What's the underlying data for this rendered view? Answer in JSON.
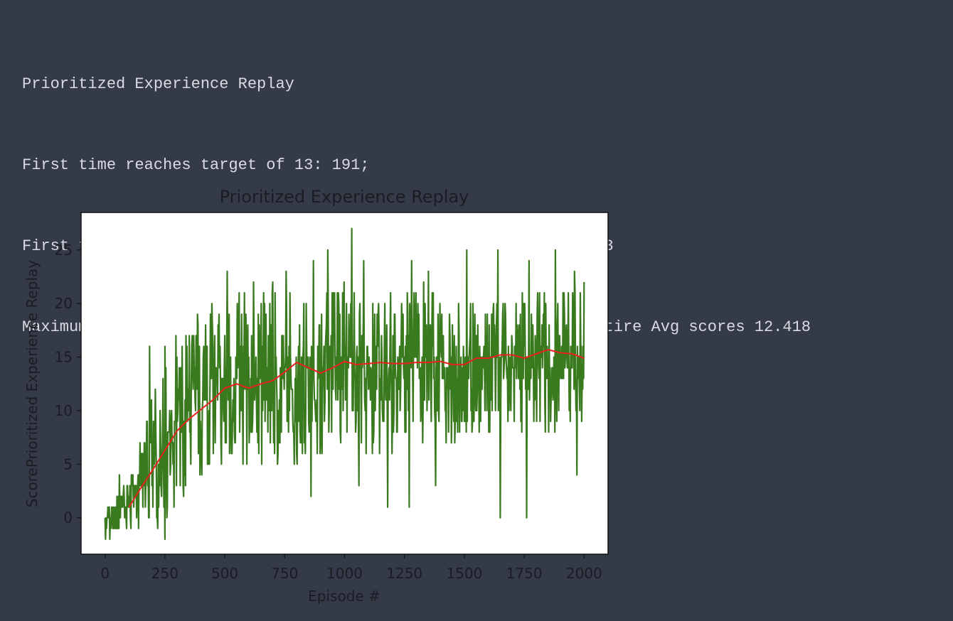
{
  "output": {
    "lines": [
      "Prioritized Experience Replay",
      "First time reaches target of 13: 191;",
      "First time reaches target of 13 with average of window 100: 713",
      "Maximum score: 27.0; Latest avg with window of 100: 14.84 ; Entire Avg scores 12.418"
    ]
  },
  "colors": {
    "background": "#343a48",
    "text": "#d8dbe2",
    "score_line": "#3a7a1e",
    "avg_line": "#e8211c"
  },
  "chart_data": {
    "type": "line",
    "title": "Prioritized Experience Replay",
    "xlabel": "Episode #",
    "ylabel": "ScorePrioritized Experience Replay",
    "xlim": [
      -100,
      2100
    ],
    "ylim": [
      -3.4,
      28.5
    ],
    "xticks": [
      0,
      250,
      500,
      750,
      1000,
      1250,
      1500,
      1750,
      2000
    ],
    "xtick_labels": [
      "0",
      "250",
      "500",
      "750",
      "1000",
      "1250",
      "1500",
      "1750",
      "2000"
    ],
    "yticks": [
      0,
      5,
      10,
      15,
      20,
      25
    ],
    "ytick_labels": [
      "0",
      "5",
      "10",
      "15",
      "20",
      "25"
    ],
    "grid": false,
    "legend": "none",
    "series": [
      {
        "role": "score",
        "color": "#3a7a1e",
        "envelope": {
          "x": [
            0,
            100,
            200,
            300,
            400,
            500,
            600,
            700,
            800,
            900,
            1000,
            1100,
            1200,
            1300,
            1400,
            1500,
            1600,
            1700,
            1800,
            1900,
            2000
          ],
          "low": [
            -2,
            -1,
            -1,
            1,
            4,
            5,
            5,
            5,
            5,
            6,
            7,
            6,
            6,
            7,
            7,
            7,
            8,
            8,
            8,
            8,
            9
          ],
          "high": [
            1,
            4,
            12,
            16,
            19,
            21,
            21,
            21,
            21,
            21,
            22,
            21,
            21,
            22,
            21,
            21,
            22,
            21,
            22,
            21,
            22
          ]
        },
        "spikes": [
          {
            "x": 20,
            "y": -2
          },
          {
            "x": 60,
            "y": 4
          },
          {
            "x": 185,
            "y": 16
          },
          {
            "x": 250,
            "y": -2
          },
          {
            "x": 250,
            "y": 16
          },
          {
            "x": 295,
            "y": 17
          },
          {
            "x": 385,
            "y": 19
          },
          {
            "x": 510,
            "y": 23
          },
          {
            "x": 620,
            "y": 22
          },
          {
            "x": 700,
            "y": 22
          },
          {
            "x": 755,
            "y": 23
          },
          {
            "x": 860,
            "y": 2
          },
          {
            "x": 870,
            "y": 24
          },
          {
            "x": 930,
            "y": 25
          },
          {
            "x": 1030,
            "y": 27
          },
          {
            "x": 1060,
            "y": 3
          },
          {
            "x": 1080,
            "y": 24
          },
          {
            "x": 1180,
            "y": 1
          },
          {
            "x": 1270,
            "y": 1
          },
          {
            "x": 1280,
            "y": 24
          },
          {
            "x": 1350,
            "y": 23
          },
          {
            "x": 1380,
            "y": 3
          },
          {
            "x": 1510,
            "y": 25
          },
          {
            "x": 1650,
            "y": 0
          },
          {
            "x": 1640,
            "y": 25
          },
          {
            "x": 1760,
            "y": 0
          },
          {
            "x": 1770,
            "y": 24
          },
          {
            "x": 1880,
            "y": 25
          },
          {
            "x": 1960,
            "y": 23
          },
          {
            "x": 1970,
            "y": 4
          },
          {
            "x": 2000,
            "y": 22
          }
        ]
      },
      {
        "role": "average",
        "color": "#e8211c",
        "x": [
          100,
          150,
          200,
          250,
          300,
          350,
          400,
          450,
          500,
          550,
          600,
          650,
          700,
          750,
          800,
          850,
          900,
          950,
          1000,
          1050,
          1100,
          1150,
          1200,
          1250,
          1300,
          1350,
          1400,
          1450,
          1500,
          1550,
          1600,
          1650,
          1700,
          1750,
          1800,
          1850,
          1900,
          1950,
          2000
        ],
        "y": [
          1,
          2.8,
          4.5,
          6.3,
          8.1,
          9.2,
          10.1,
          11,
          12.1,
          12.5,
          12.1,
          12.5,
          12.8,
          13.6,
          14.5,
          14,
          13.5,
          14,
          14.6,
          14.3,
          14.4,
          14.5,
          14.4,
          14.4,
          14.5,
          14.5,
          14.6,
          14.3,
          14.3,
          14.9,
          14.9,
          15.2,
          15.2,
          14.9,
          15.3,
          15.7,
          15.4,
          15.3,
          14.9
        ]
      }
    ]
  }
}
